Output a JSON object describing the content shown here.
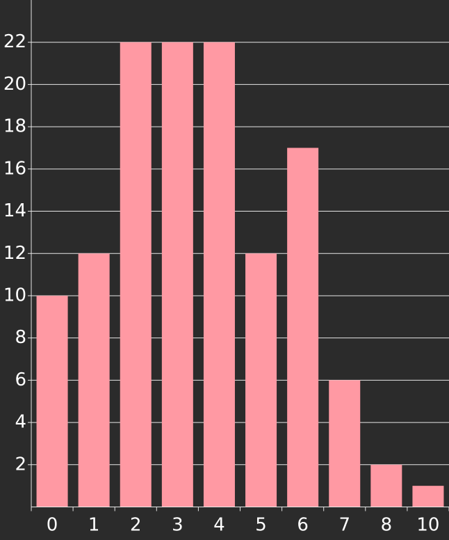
{
  "chart_data": {
    "type": "bar",
    "categories": [
      "0",
      "1",
      "2",
      "3",
      "4",
      "5",
      "6",
      "7",
      "8",
      "10"
    ],
    "values": [
      10,
      12,
      22,
      22,
      22,
      12,
      17,
      6,
      2,
      1
    ],
    "color": "#ff99a3",
    "ylim": [
      0,
      24
    ],
    "yticks": [
      2,
      4,
      6,
      8,
      10,
      12,
      14,
      16,
      18,
      20,
      22
    ],
    "grid": true
  }
}
